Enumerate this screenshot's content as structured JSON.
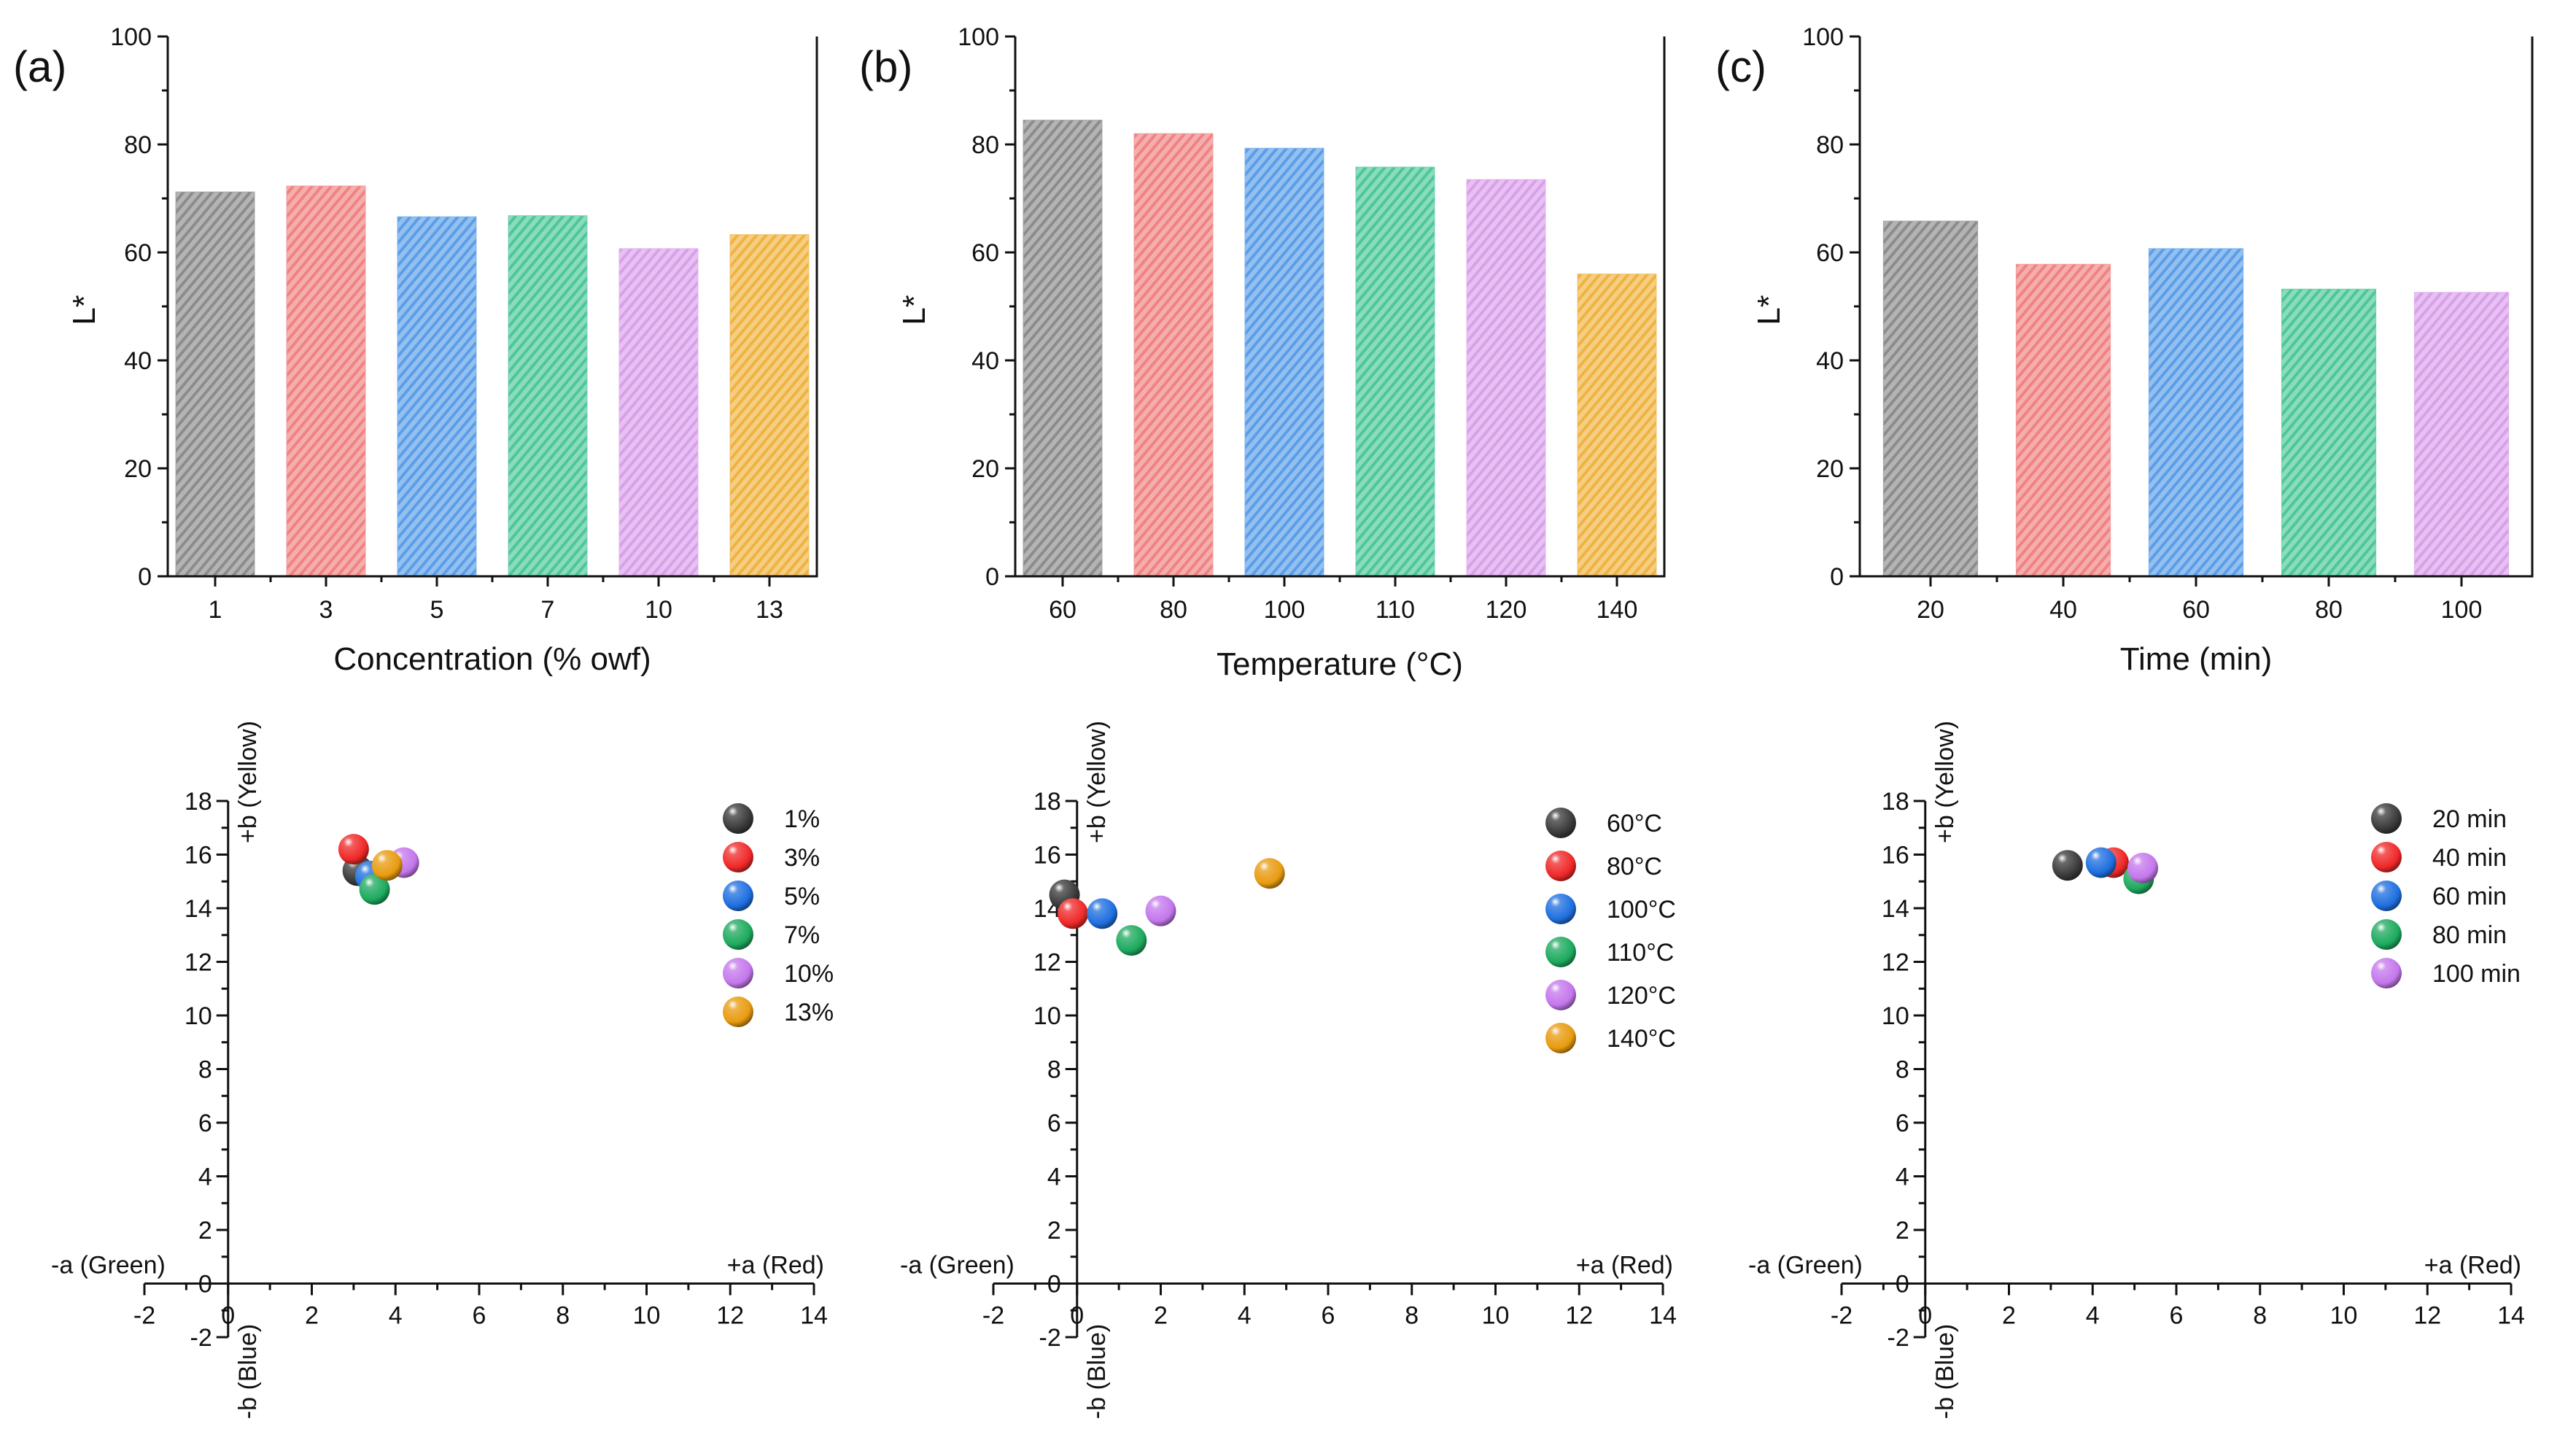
{
  "colors": {
    "gray": "#8c8c8c",
    "red": "#f08282",
    "blue": "#5b9ee8",
    "green": "#4dc79a",
    "violet": "#d9a0ea",
    "orange": "#efb340",
    "sphere_dark": "#3a3a3a",
    "sphere_red": "#f02828",
    "sphere_blue": "#1f6fe0",
    "sphere_green": "#1daa5e",
    "sphere_violet": "#c477ec",
    "sphere_orange": "#e89b10"
  },
  "chart_data": [
    {
      "type": "bar",
      "panel": "(a)",
      "categories": [
        "1",
        "3",
        "5",
        "7",
        "10",
        "13"
      ],
      "values": [
        71.2,
        72.3,
        66.6,
        66.8,
        60.7,
        63.3
      ],
      "colors": [
        "gray",
        "red",
        "blue",
        "green",
        "violet",
        "orange"
      ],
      "xlabel": "Concentration (% owf)",
      "ylabel": "L*",
      "ylim": [
        0,
        100
      ],
      "yticks": [
        "0",
        "20",
        "40",
        "60",
        "80",
        "100"
      ]
    },
    {
      "type": "bar",
      "panel": "(b)",
      "categories": [
        "60",
        "80",
        "100",
        "110",
        "120",
        "140"
      ],
      "values": [
        84.5,
        82.0,
        79.3,
        75.8,
        73.5,
        56.0
      ],
      "colors": [
        "gray",
        "red",
        "blue",
        "green",
        "violet",
        "orange"
      ],
      "xlabel": "Temperature (°C)",
      "ylabel": "L*",
      "ylim": [
        0,
        100
      ],
      "yticks": [
        "0",
        "20",
        "40",
        "60",
        "80",
        "100"
      ]
    },
    {
      "type": "bar",
      "panel": "(c)",
      "categories": [
        "20",
        "40",
        "60",
        "80",
        "100"
      ],
      "values": [
        65.8,
        57.8,
        60.7,
        53.2,
        52.6
      ],
      "colors": [
        "gray",
        "red",
        "blue",
        "green",
        "violet"
      ],
      "xlabel": "Time (min)",
      "ylabel": "L*",
      "ylim": [
        0,
        100
      ],
      "yticks": [
        "0",
        "20",
        "40",
        "60",
        "80",
        "100"
      ]
    },
    {
      "type": "scatter",
      "xlim": [
        -2,
        14
      ],
      "ylim": [
        -2,
        18
      ],
      "xticks": [
        "-2",
        "0",
        "2",
        "4",
        "6",
        "8",
        "10",
        "12",
        "14"
      ],
      "yticks": [
        "-2",
        "0",
        "2",
        "4",
        "6",
        "8",
        "10",
        "12",
        "14",
        "16",
        "18"
      ],
      "labels": {
        "plus_b": "+b (Yellow)",
        "minus_b": "-b (Blue)",
        "plus_a": "+a (Red)",
        "minus_a": "-a (Green)"
      },
      "legend_position": "top-right",
      "series": [
        {
          "name": "1%",
          "x": 3.1,
          "y": 15.4,
          "color": "sphere_dark"
        },
        {
          "name": "3%",
          "x": 3.0,
          "y": 16.2,
          "color": "sphere_red"
        },
        {
          "name": "5%",
          "x": 3.4,
          "y": 15.2,
          "color": "sphere_blue"
        },
        {
          "name": "7%",
          "x": 3.5,
          "y": 14.7,
          "color": "sphere_green"
        },
        {
          "name": "10%",
          "x": 4.2,
          "y": 15.7,
          "color": "sphere_violet"
        },
        {
          "name": "13%",
          "x": 3.8,
          "y": 15.6,
          "color": "sphere_orange"
        }
      ]
    },
    {
      "type": "scatter",
      "xlim": [
        -2,
        14
      ],
      "ylim": [
        -2,
        18
      ],
      "xticks": [
        "-2",
        "0",
        "2",
        "4",
        "6",
        "8",
        "10",
        "12",
        "14"
      ],
      "yticks": [
        "-2",
        "0",
        "2",
        "4",
        "6",
        "8",
        "10",
        "12",
        "14",
        "16",
        "18"
      ],
      "labels": {
        "plus_b": "+b (Yellow)",
        "minus_b": "-b (Blue)",
        "plus_a": "+a (Red)",
        "minus_a": "-a (Green)"
      },
      "legend_position": "top-right",
      "series": [
        {
          "name": "60°C",
          "x": -0.3,
          "y": 14.5,
          "color": "sphere_dark"
        },
        {
          "name": "80°C",
          "x": -0.1,
          "y": 13.8,
          "color": "sphere_red"
        },
        {
          "name": "100°C",
          "x": 0.6,
          "y": 13.8,
          "color": "sphere_blue"
        },
        {
          "name": "110°C",
          "x": 1.3,
          "y": 12.8,
          "color": "sphere_green"
        },
        {
          "name": "120°C",
          "x": 2.0,
          "y": 13.9,
          "color": "sphere_violet"
        },
        {
          "name": "140°C",
          "x": 4.6,
          "y": 15.3,
          "color": "sphere_orange"
        }
      ]
    },
    {
      "type": "scatter",
      "xlim": [
        -2,
        14
      ],
      "ylim": [
        -2,
        18
      ],
      "xticks": [
        "-2",
        "0",
        "2",
        "4",
        "6",
        "8",
        "10",
        "12",
        "14"
      ],
      "yticks": [
        "-2",
        "0",
        "2",
        "4",
        "6",
        "8",
        "10",
        "12",
        "14",
        "16",
        "18"
      ],
      "labels": {
        "plus_b": "+b (Yellow)",
        "minus_b": "-b (Blue)",
        "plus_a": "+a (Red)",
        "minus_a": "-a (Green)"
      },
      "legend_position": "top-right",
      "series": [
        {
          "name": "20 min",
          "x": 3.4,
          "y": 15.6,
          "color": "sphere_dark"
        },
        {
          "name": "40 min",
          "x": 4.5,
          "y": 15.7,
          "color": "sphere_red"
        },
        {
          "name": "60 min",
          "x": 4.2,
          "y": 15.7,
          "color": "sphere_blue"
        },
        {
          "name": "80 min",
          "x": 5.1,
          "y": 15.1,
          "color": "sphere_green"
        },
        {
          "name": "100 min",
          "x": 5.2,
          "y": 15.5,
          "color": "sphere_violet"
        }
      ]
    }
  ]
}
